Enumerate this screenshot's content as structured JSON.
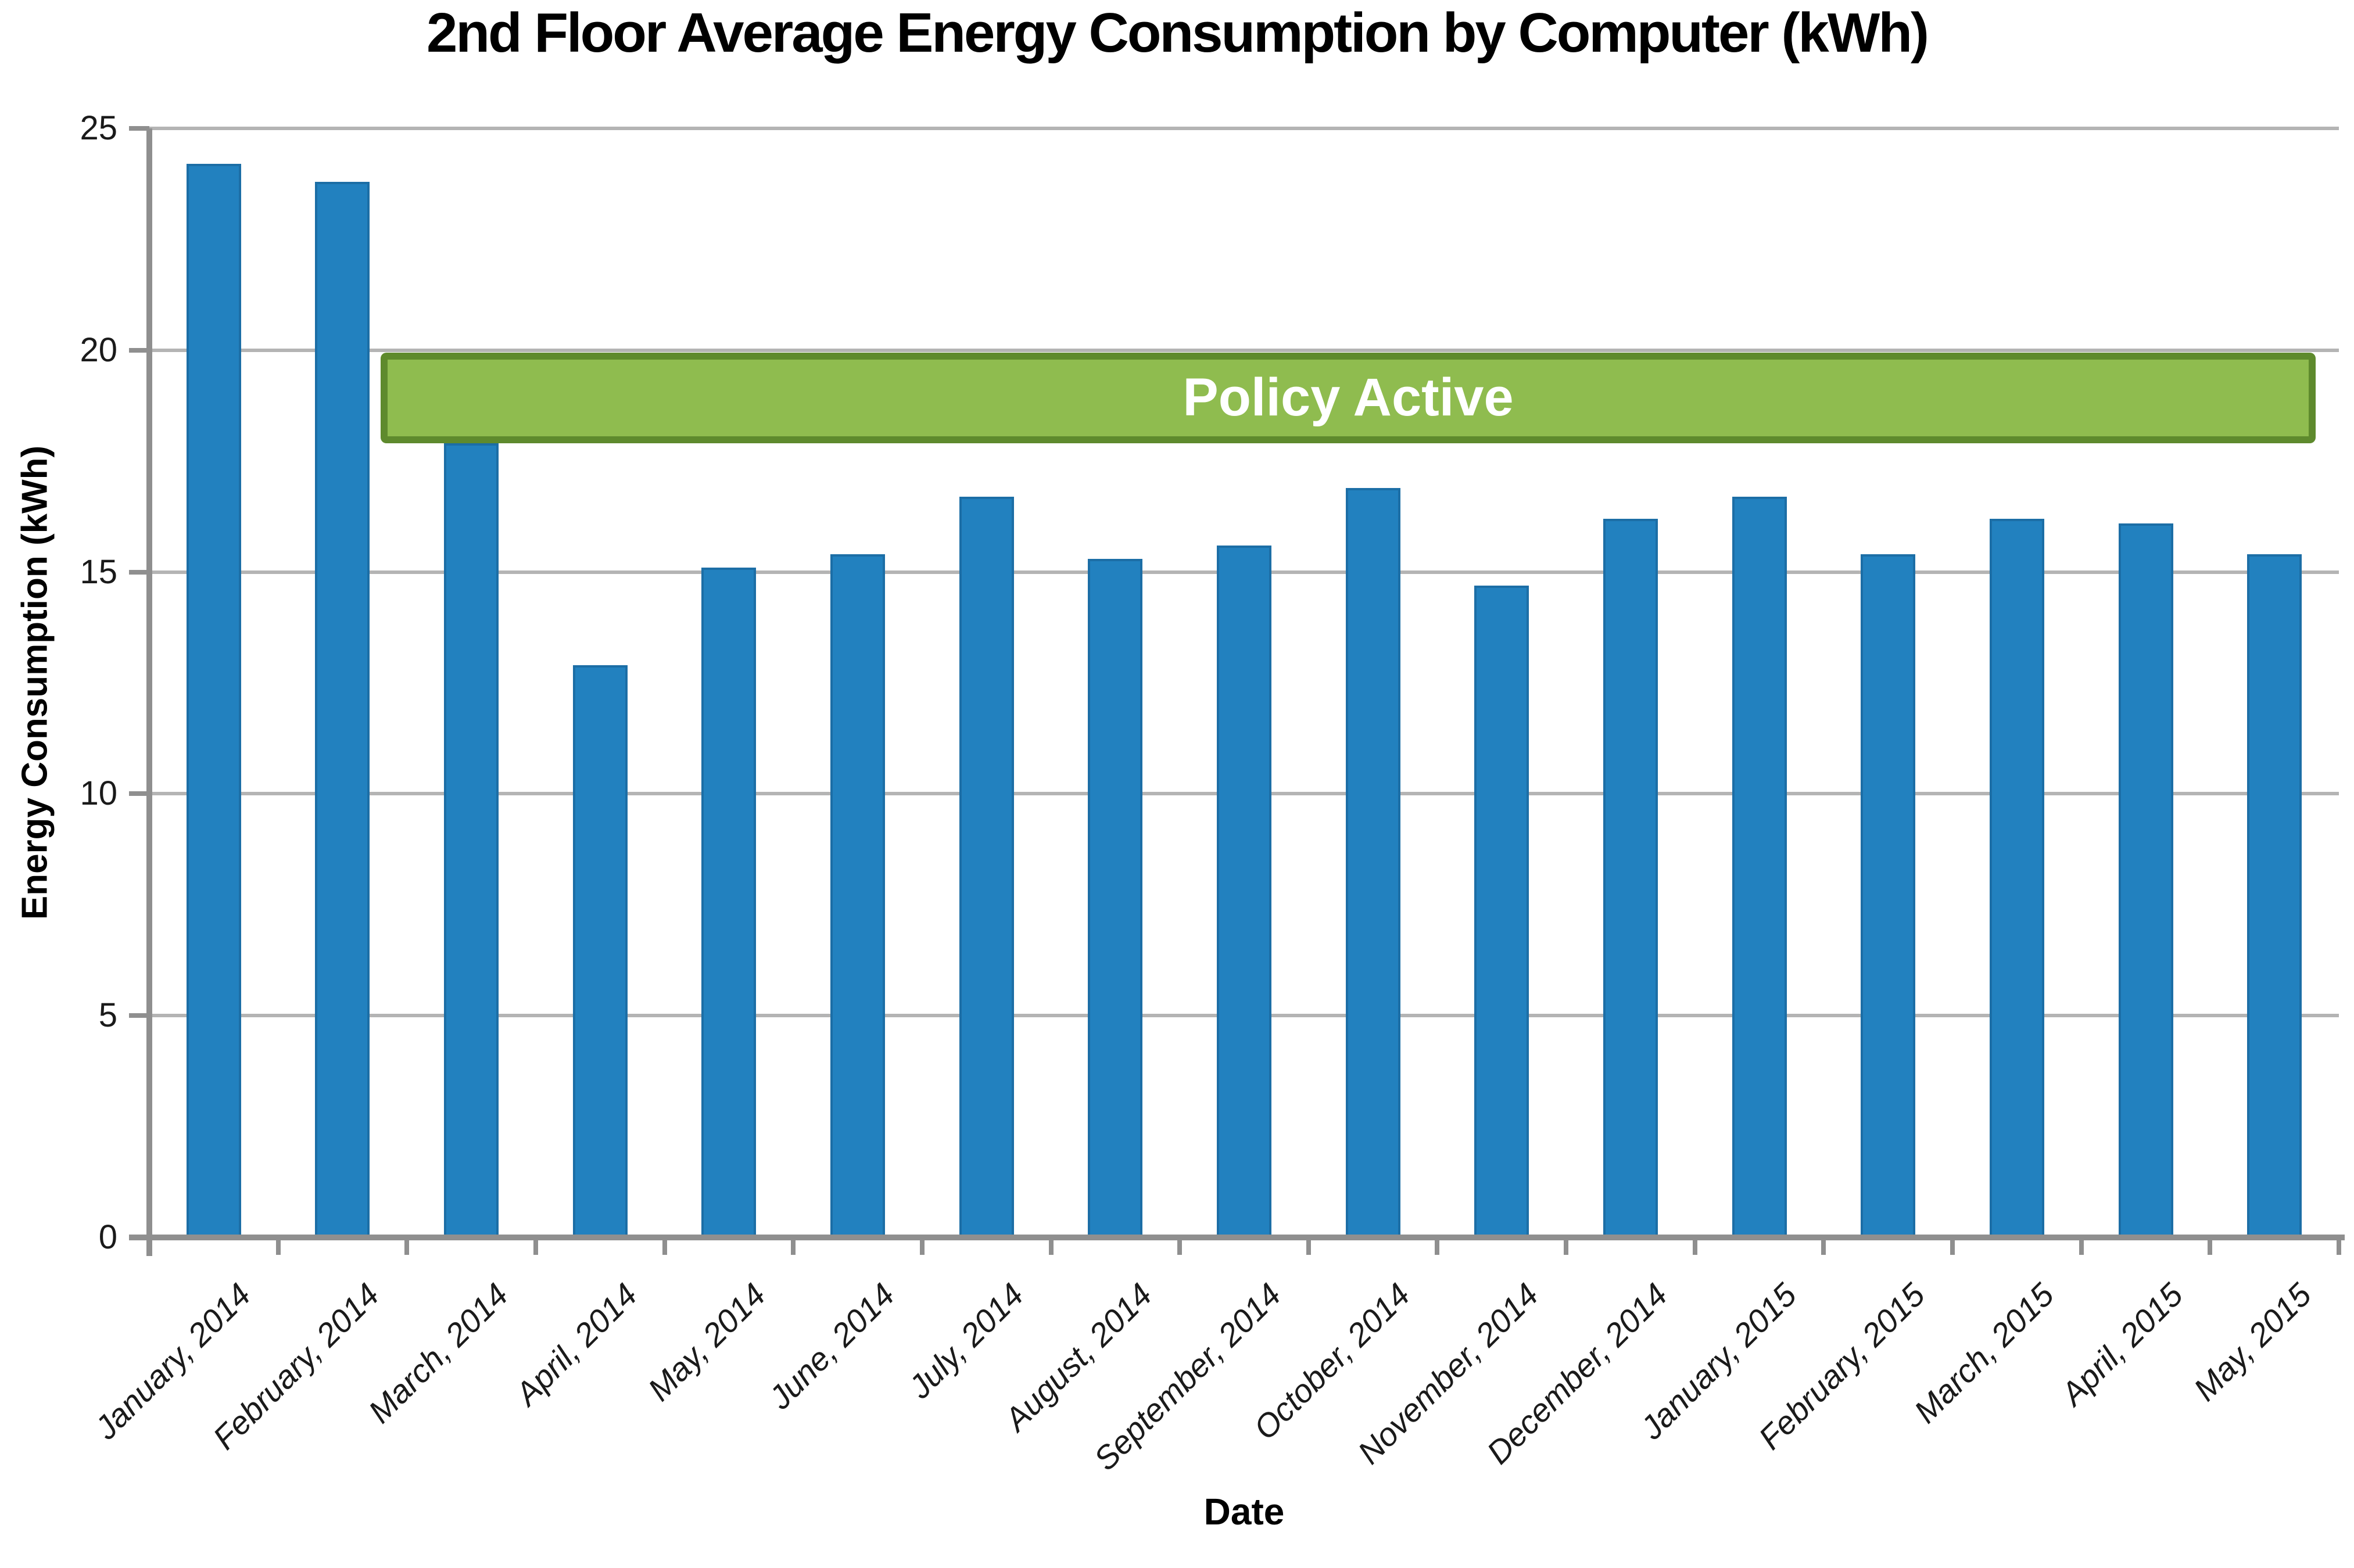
{
  "chart_data": {
    "type": "bar",
    "title": "2nd Floor Average Energy Consumption by Computer (kWh)",
    "xlabel": "Date",
    "ylabel": "Energy Consumption (kWh)",
    "ylim": [
      0,
      25
    ],
    "yticks": [
      0,
      5,
      10,
      15,
      20,
      25
    ],
    "grid": "horizontal gridlines at each y tick",
    "legend_position": "none",
    "bar_color": "#2281bf",
    "bar_border_color": "#1c6ea6",
    "categories": [
      "January, 2014",
      "February, 2014",
      "March, 2014",
      "April, 2014",
      "May, 2014",
      "June, 2014",
      "July, 2014",
      "August, 2014",
      "September, 2014",
      "October, 2014",
      "November, 2014",
      "December, 2014",
      "January, 2015",
      "February, 2015",
      "March, 2015",
      "April, 2015",
      "May, 2015"
    ],
    "values": [
      24.2,
      23.8,
      17.9,
      12.9,
      15.1,
      15.4,
      16.7,
      15.3,
      15.6,
      16.9,
      14.7,
      16.2,
      16.7,
      15.4,
      16.2,
      16.1,
      15.4
    ],
    "annotation": {
      "label": "Policy Active",
      "covers_categories_from": "March, 2014",
      "covers_categories_to": "May, 2015",
      "y_range": [
        17.9,
        19.95
      ],
      "fill_color": "#8fbc4f",
      "border_color": "#5e8a2d",
      "text_color": "#ffffff"
    }
  },
  "axis_style_colors": {
    "gridline": "#b4b4b4",
    "axis_line": "#8f8f8f",
    "label_text": "#1a1a1a"
  }
}
